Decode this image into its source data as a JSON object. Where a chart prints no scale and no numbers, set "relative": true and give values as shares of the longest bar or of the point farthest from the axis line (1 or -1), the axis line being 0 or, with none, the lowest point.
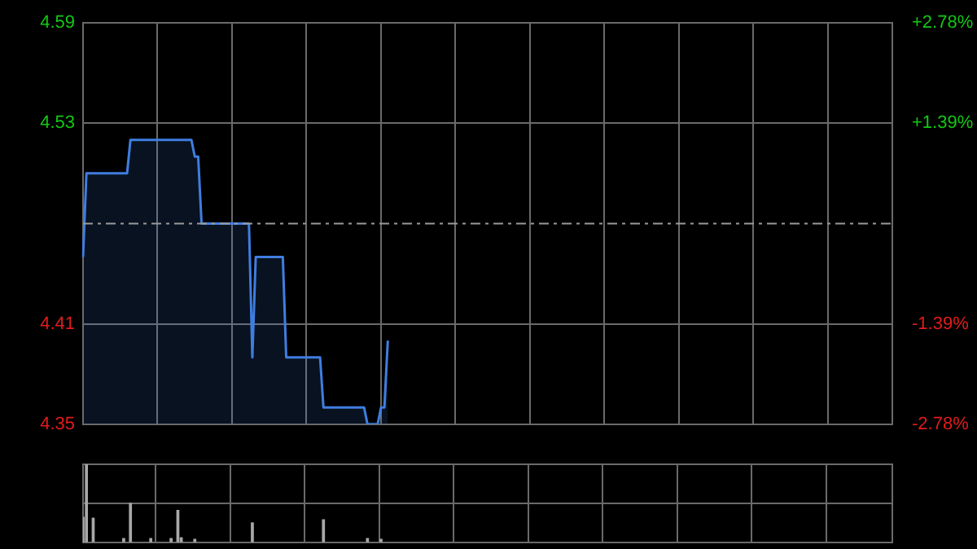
{
  "chart_data": [
    {
      "type": "area",
      "color": "#3f7ee0",
      "categories": [
        null,
        null,
        null,
        null,
        null,
        null,
        null,
        null,
        null,
        null,
        null,
        null,
        null,
        null,
        null,
        null,
        null,
        null,
        null,
        null,
        null,
        null,
        null,
        null,
        null,
        null,
        null,
        null,
        null,
        null,
        null,
        null,
        null,
        null,
        null,
        null,
        null,
        null,
        null,
        null,
        null,
        null,
        null,
        null,
        null,
        null,
        null,
        null,
        null,
        null,
        null,
        null,
        null,
        null,
        null,
        null,
        null,
        null,
        null,
        null,
        null,
        null,
        null,
        null,
        null,
        null,
        null,
        null,
        null,
        null,
        null,
        null,
        null,
        null,
        null,
        null,
        null,
        null,
        null,
        null,
        null,
        null,
        null,
        null,
        null,
        null,
        null,
        null,
        null,
        null,
        null,
        null,
        null,
        null,
        null,
        null,
        null,
        null,
        null,
        null,
        null,
        null,
        null,
        null,
        null,
        null,
        null,
        null,
        null,
        null,
        null,
        null,
        null,
        null,
        null,
        null,
        null,
        null,
        null,
        null,
        null,
        null,
        null,
        null,
        null,
        null,
        null,
        null,
        null,
        null,
        null,
        null,
        null,
        null,
        null,
        null,
        null,
        null,
        null,
        null,
        null,
        null,
        null,
        null,
        null,
        null,
        null,
        null,
        null,
        null,
        null,
        null,
        null,
        null,
        null,
        null,
        null,
        null,
        null,
        null,
        null,
        null,
        null,
        null,
        null,
        null,
        null,
        null,
        null,
        null,
        null,
        null,
        null,
        null,
        null,
        null,
        null,
        null,
        null,
        null,
        null,
        null,
        null,
        null,
        null,
        null,
        null,
        null,
        null,
        null,
        null,
        null,
        null,
        null,
        null,
        null,
        null,
        null,
        null,
        null,
        null,
        null,
        null,
        null,
        null,
        null,
        null,
        null,
        null,
        null,
        null,
        null,
        null,
        null,
        null,
        null,
        null,
        null,
        null,
        null,
        null,
        null,
        null,
        null,
        null,
        null,
        null,
        null,
        null,
        null,
        null,
        null,
        null,
        null,
        null,
        null,
        null,
        null,
        null,
        null
      ],
      "values": [
        4.45,
        4.5,
        4.5,
        4.5,
        4.5,
        4.5,
        4.5,
        4.5,
        4.5,
        4.5,
        4.5,
        4.5,
        4.5,
        4.5,
        4.52,
        4.52,
        4.52,
        4.52,
        4.52,
        4.52,
        4.52,
        4.52,
        4.52,
        4.52,
        4.52,
        4.52,
        4.52,
        4.52,
        4.52,
        4.52,
        4.52,
        4.52,
        4.52,
        4.51,
        4.51,
        4.47,
        4.47,
        4.47,
        4.47,
        4.47,
        4.47,
        4.47,
        4.47,
        4.47,
        4.47,
        4.47,
        4.47,
        4.47,
        4.47,
        4.47,
        4.39,
        4.45,
        4.45,
        4.45,
        4.45,
        4.45,
        4.45,
        4.45,
        4.45,
        4.45,
        4.39,
        4.39,
        4.39,
        4.39,
        4.39,
        4.39,
        4.39,
        4.39,
        4.39,
        4.39,
        4.39,
        4.36,
        4.36,
        4.36,
        4.36,
        4.36,
        4.36,
        4.36,
        4.36,
        4.36,
        4.36,
        4.36,
        4.36,
        4.36,
        4.35,
        4.35,
        4.35,
        4.35,
        4.36,
        4.36,
        4.4,
        null,
        null,
        null,
        null,
        null,
        null,
        null,
        null,
        null,
        null,
        null,
        null,
        null,
        null,
        null,
        null,
        null,
        null,
        null,
        null,
        null,
        null,
        null,
        null,
        null,
        null,
        null,
        null,
        null,
        null,
        null,
        null,
        null,
        null,
        null,
        null,
        null,
        null,
        null,
        null,
        null,
        null,
        null,
        null,
        null,
        null,
        null,
        null,
        null,
        null,
        null,
        null,
        null,
        null,
        null,
        null,
        null,
        null,
        null,
        null,
        null,
        null,
        null,
        null,
        null,
        null,
        null,
        null,
        null,
        null,
        null,
        null,
        null,
        null,
        null,
        null,
        null,
        null,
        null,
        null,
        null,
        null,
        null,
        null,
        null,
        null,
        null,
        null,
        null,
        null,
        null,
        null,
        null,
        null,
        null,
        null,
        null,
        null,
        null,
        null,
        null,
        null,
        null,
        null,
        null,
        null,
        null,
        null,
        null,
        null,
        null,
        null,
        null,
        null,
        null,
        null,
        null,
        null,
        null,
        null,
        null,
        null,
        null,
        null,
        null,
        null,
        null,
        null,
        null,
        null,
        null,
        null,
        null,
        null,
        null,
        null,
        null,
        null,
        null,
        null,
        null,
        null,
        null,
        null,
        null,
        null,
        null,
        null,
        null
      ],
      "ylim": [
        4.35,
        4.59
      ],
      "yticks": [
        4.59,
        4.53,
        4.41,
        4.35
      ],
      "y2lim": [
        -2.78,
        2.78
      ],
      "y2ticks": [
        {
          "value": 2.78,
          "label": "+2.78%"
        },
        {
          "value": 1.39,
          "label": "+1.39%"
        },
        {
          "value": -1.39,
          "label": "-1.39%"
        },
        {
          "value": -2.78,
          "label": "-2.78%"
        }
      ],
      "ref_lines": [
        {
          "axis": "y",
          "value": 4.47,
          "line_style": "dashed"
        }
      ],
      "grid": true,
      "legend": false
    },
    {
      "type": "bar",
      "color": "#a8a8a8",
      "relative": true,
      "categories": [
        null,
        null,
        null,
        null,
        null,
        null,
        null,
        null,
        null,
        null,
        null,
        null,
        null,
        null,
        null,
        null,
        null,
        null,
        null,
        null,
        null,
        null,
        null,
        null,
        null,
        null,
        null,
        null,
        null,
        null,
        null,
        null,
        null,
        null,
        null,
        null,
        null,
        null,
        null,
        null,
        null,
        null,
        null,
        null,
        null,
        null,
        null,
        null,
        null,
        null,
        null,
        null,
        null,
        null,
        null,
        null,
        null,
        null,
        null,
        null,
        null,
        null,
        null,
        null,
        null,
        null,
        null,
        null,
        null,
        null,
        null,
        null,
        null,
        null,
        null,
        null,
        null,
        null,
        null,
        null,
        null,
        null,
        null,
        null,
        null,
        null,
        null,
        null,
        null,
        null,
        null,
        null,
        null,
        null,
        null,
        null,
        null,
        null,
        null,
        null,
        null,
        null,
        null,
        null,
        null,
        null,
        null,
        null,
        null,
        null,
        null,
        null,
        null,
        null,
        null,
        null,
        null,
        null,
        null,
        null,
        null,
        null,
        null,
        null,
        null,
        null,
        null,
        null,
        null,
        null,
        null,
        null,
        null,
        null,
        null,
        null,
        null,
        null,
        null,
        null,
        null,
        null,
        null,
        null,
        null,
        null,
        null,
        null,
        null,
        null,
        null,
        null,
        null,
        null,
        null,
        null,
        null,
        null,
        null,
        null,
        null,
        null,
        null,
        null,
        null,
        null,
        null,
        null,
        null,
        null,
        null,
        null,
        null,
        null,
        null,
        null,
        null,
        null,
        null,
        null,
        null,
        null,
        null,
        null,
        null,
        null,
        null,
        null,
        null,
        null,
        null,
        null,
        null,
        null,
        null,
        null,
        null,
        null,
        null,
        null,
        null,
        null,
        null,
        null,
        null,
        null,
        null,
        null,
        null,
        null,
        null,
        null,
        null,
        null,
        null,
        null,
        null,
        null,
        null,
        null,
        null,
        null,
        null,
        null,
        null,
        null,
        null,
        null,
        null,
        null,
        null,
        null,
        null,
        null,
        null,
        null,
        null,
        null,
        null,
        null
      ],
      "values": [
        0.32,
        1,
        null,
        0.31,
        null,
        null,
        null,
        null,
        null,
        null,
        null,
        null,
        0.05,
        null,
        0.5,
        null,
        null,
        null,
        null,
        null,
        0.05,
        null,
        null,
        null,
        null,
        null,
        0.05,
        null,
        0.41,
        0.06,
        null,
        null,
        null,
        0.04,
        null,
        null,
        null,
        null,
        null,
        null,
        null,
        null,
        null,
        null,
        null,
        null,
        null,
        null,
        null,
        null,
        0.25,
        null,
        null,
        null,
        null,
        null,
        null,
        null,
        null,
        null,
        null,
        null,
        null,
        null,
        null,
        null,
        null,
        null,
        null,
        null,
        null,
        0.29,
        null,
        null,
        null,
        null,
        null,
        null,
        null,
        null,
        null,
        null,
        null,
        null,
        0.05,
        null,
        null,
        null,
        0.04,
        null,
        null,
        null,
        null,
        null,
        null,
        null,
        null,
        null,
        null,
        null,
        null,
        null,
        null,
        null,
        null,
        null,
        null,
        null,
        null,
        null,
        null,
        null,
        null,
        null,
        null,
        null,
        null,
        null,
        null,
        null,
        null,
        null,
        null,
        null,
        null,
        null,
        null,
        null,
        null,
        null,
        null,
        null,
        null,
        null,
        null,
        null,
        null,
        null,
        null,
        null,
        null,
        null,
        null,
        null,
        null,
        null,
        null,
        null,
        null,
        null,
        null,
        null,
        null,
        null,
        null,
        null,
        null,
        null,
        null,
        null,
        null,
        null,
        null,
        null,
        null,
        null,
        null,
        null,
        null,
        null,
        null,
        null,
        null,
        null,
        null,
        null,
        null,
        null,
        null,
        null,
        null,
        null,
        null,
        null,
        null,
        null,
        null,
        null,
        null,
        null,
        null,
        null,
        null,
        null,
        null,
        null,
        null,
        null,
        null,
        null,
        null,
        null,
        null,
        null,
        null,
        null,
        null,
        null,
        null,
        null,
        null,
        null,
        null,
        null,
        null,
        null,
        null,
        null,
        null,
        null,
        null,
        null,
        null,
        null,
        null,
        null,
        null,
        null,
        null,
        null,
        null,
        null,
        null,
        null,
        null,
        null,
        null,
        null,
        null,
        null
      ],
      "grid": true,
      "legend": false
    }
  ]
}
